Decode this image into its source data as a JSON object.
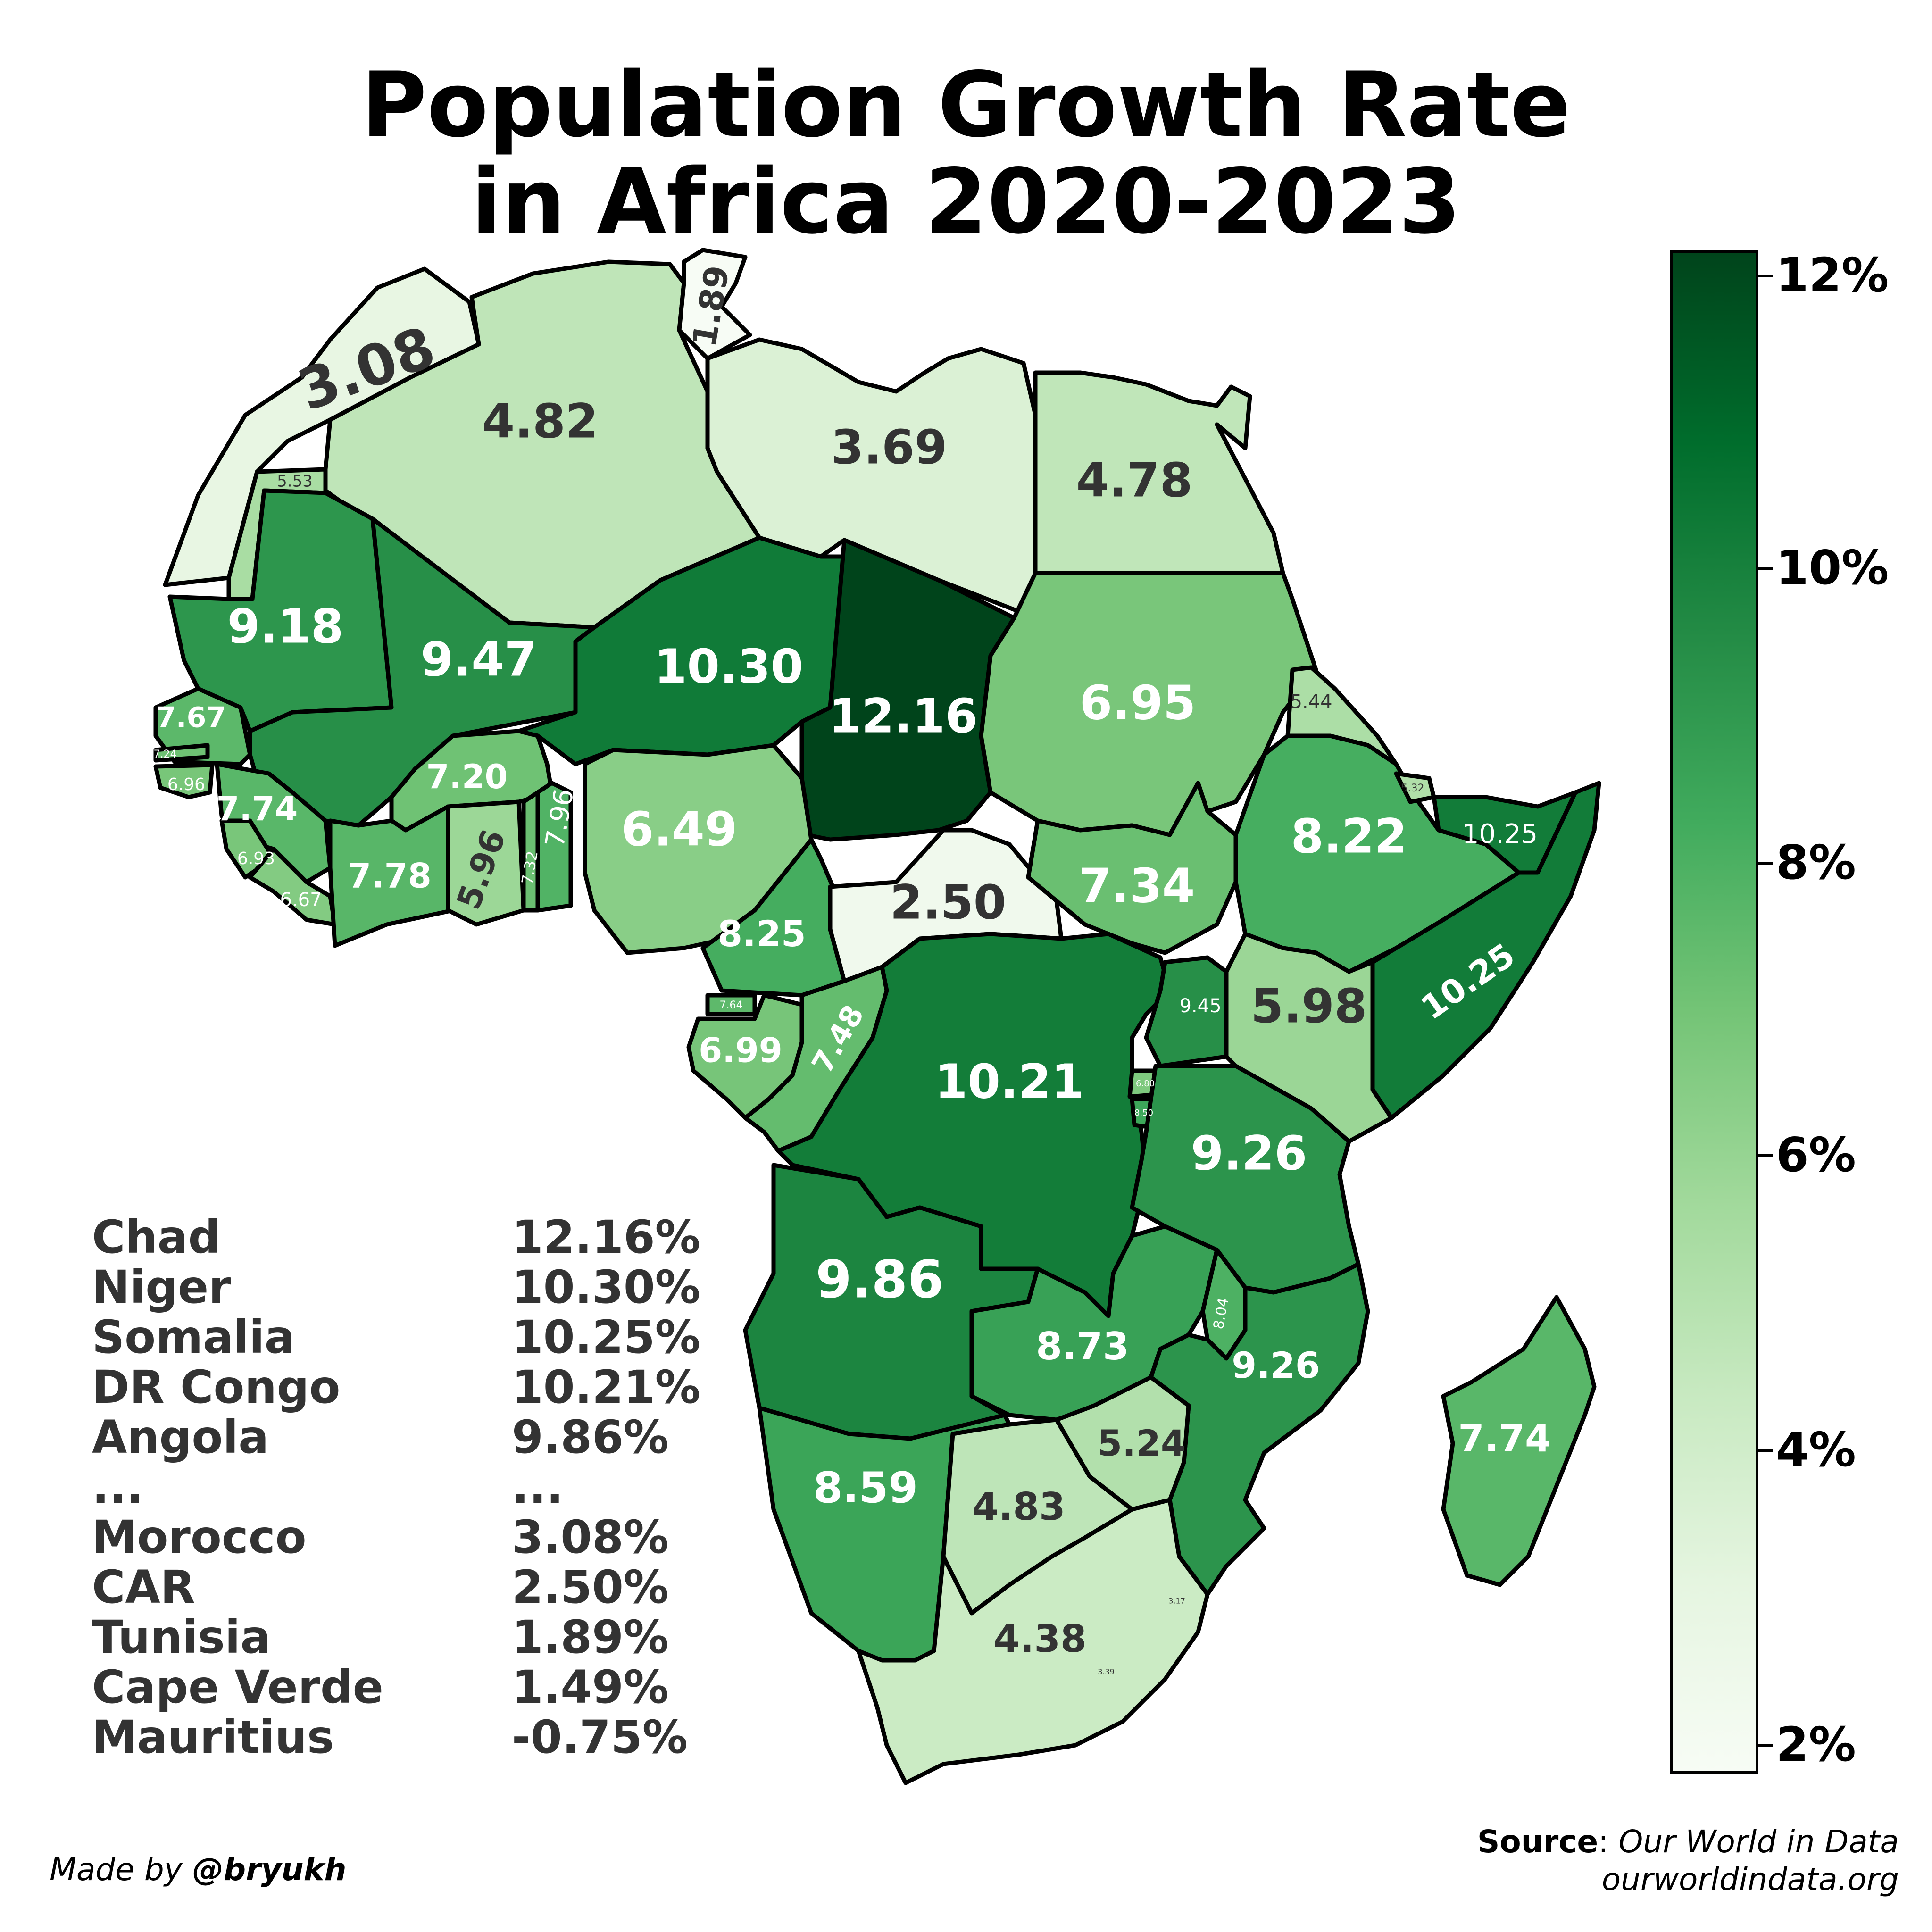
{
  "title": {
    "line1": "Population Growth Rate",
    "line2": "in Africa 2020-2023"
  },
  "colors": {
    "scale_min": "#f7fcf5",
    "scale_max": "#00441b",
    "border": "#000000"
  },
  "legend": {
    "ticks": [
      "12%",
      "10%",
      "8%",
      "6%",
      "4%",
      "2%"
    ],
    "min": 2,
    "max": 12.16
  },
  "countries": [
    {
      "name": "Morocco",
      "value": 3.08,
      "label": "3.08"
    },
    {
      "name": "Western Sahara",
      "value": 5.53,
      "label": "5.53"
    },
    {
      "name": "Algeria",
      "value": 4.82,
      "label": "4.82"
    },
    {
      "name": "Tunisia",
      "value": 1.89,
      "label": "1.89"
    },
    {
      "name": "Libya",
      "value": 3.69,
      "label": "3.69"
    },
    {
      "name": "Egypt",
      "value": 4.78,
      "label": "4.78"
    },
    {
      "name": "Mauritania",
      "value": 9.18,
      "label": "9.18"
    },
    {
      "name": "Mali",
      "value": 9.47,
      "label": "9.47"
    },
    {
      "name": "Niger",
      "value": 10.3,
      "label": "10.30"
    },
    {
      "name": "Chad",
      "value": 12.16,
      "label": "12.16"
    },
    {
      "name": "Sudan",
      "value": 6.95,
      "label": "6.95"
    },
    {
      "name": "Eritrea",
      "value": 5.44,
      "label": "5.44"
    },
    {
      "name": "Senegal",
      "value": 7.67,
      "label": "7.67"
    },
    {
      "name": "Gambia",
      "value": 7.24,
      "label": "7.24"
    },
    {
      "name": "Guinea-Bissau",
      "value": 6.96,
      "label": "6.96"
    },
    {
      "name": "Guinea",
      "value": 7.74,
      "label": "7.74"
    },
    {
      "name": "Sierra Leone",
      "value": 6.93,
      "label": "6.93"
    },
    {
      "name": "Liberia",
      "value": 6.67,
      "label": "6.67"
    },
    {
      "name": "Burkina Faso",
      "value": 7.2,
      "label": "7.20"
    },
    {
      "name": "Ivory Coast",
      "value": 7.78,
      "label": "7.78"
    },
    {
      "name": "Ghana",
      "value": 5.96,
      "label": "5.96"
    },
    {
      "name": "Togo",
      "value": 7.32,
      "label": "7.32"
    },
    {
      "name": "Benin",
      "value": 7.96,
      "label": "7.96"
    },
    {
      "name": "Nigeria",
      "value": 6.49,
      "label": "6.49"
    },
    {
      "name": "Cameroon",
      "value": 8.25,
      "label": "8.25"
    },
    {
      "name": "Central African Republic",
      "value": 2.5,
      "label": "2.50"
    },
    {
      "name": "South Sudan",
      "value": 7.34,
      "label": "7.34"
    },
    {
      "name": "Ethiopia",
      "value": 8.22,
      "label": "8.22"
    },
    {
      "name": "Djibouti",
      "value": 5.32,
      "label": "5.32"
    },
    {
      "name": "Somaliland",
      "value": 10.25,
      "label": "10.25"
    },
    {
      "name": "Somalia",
      "value": 10.25,
      "label": "10.25"
    },
    {
      "name": "Equatorial Guinea",
      "value": 7.64,
      "label": "7.64"
    },
    {
      "name": "Gabon",
      "value": 6.99,
      "label": "6.99"
    },
    {
      "name": "Republic of the Congo",
      "value": 7.48,
      "label": "7.48"
    },
    {
      "name": "DR Congo",
      "value": 10.21,
      "label": "10.21"
    },
    {
      "name": "Uganda",
      "value": 9.45,
      "label": "9.45"
    },
    {
      "name": "Kenya",
      "value": 5.98,
      "label": "5.98"
    },
    {
      "name": "Rwanda",
      "value": 6.8,
      "label": "6.80"
    },
    {
      "name": "Burundi",
      "value": 8.5,
      "label": "8.50"
    },
    {
      "name": "Tanzania",
      "value": 9.26,
      "label": "9.26"
    },
    {
      "name": "Angola",
      "value": 9.86,
      "label": "9.86"
    },
    {
      "name": "Zambia",
      "value": 8.73,
      "label": "8.73"
    },
    {
      "name": "Malawi",
      "value": 8.04,
      "label": "8.04"
    },
    {
      "name": "Mozambique",
      "value": 9.26,
      "label": "9.26"
    },
    {
      "name": "Madagascar",
      "value": 7.74,
      "label": "7.74"
    },
    {
      "name": "Namibia",
      "value": 8.59,
      "label": "8.59"
    },
    {
      "name": "Botswana",
      "value": 4.83,
      "label": "4.83"
    },
    {
      "name": "Zimbabwe",
      "value": 5.24,
      "label": "5.24"
    },
    {
      "name": "Eswatini",
      "value": 3.17,
      "label": "3.17"
    },
    {
      "name": "Lesotho",
      "value": 3.39,
      "label": "3.39"
    },
    {
      "name": "South Africa",
      "value": 4.38,
      "label": "4.38"
    }
  ],
  "ranking": [
    {
      "name": "Chad",
      "value": "12.16%"
    },
    {
      "name": "Niger",
      "value": "10.30%"
    },
    {
      "name": "Somalia",
      "value": "10.25%"
    },
    {
      "name": "DR Congo",
      "value": "10.21%"
    },
    {
      "name": "Angola",
      "value": "9.86%"
    },
    {
      "name": "...",
      "value": "..."
    },
    {
      "name": "Morocco",
      "value": "3.08%"
    },
    {
      "name": "CAR",
      "value": "2.50%"
    },
    {
      "name": "Tunisia",
      "value": "1.89%"
    },
    {
      "name": "Cape Verde",
      "value": "1.49%"
    },
    {
      "name": "Mauritius",
      "value": "-0.75%"
    }
  ],
  "credit": {
    "prefix": "Made by ",
    "handle": "@bryukh"
  },
  "source": {
    "label": "Source",
    "separator": ": ",
    "name": "Our World in Data",
    "url": "ourworldindata.org"
  }
}
